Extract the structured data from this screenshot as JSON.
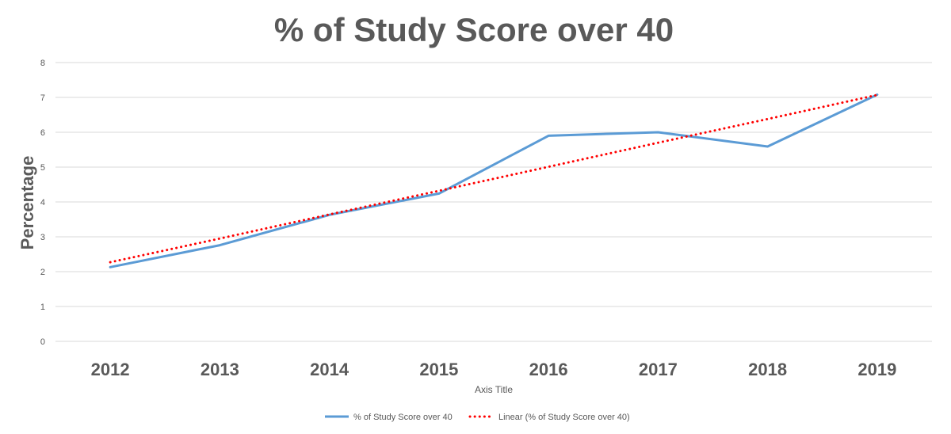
{
  "chart_data": {
    "type": "line",
    "title": "% of Study Score over 40",
    "xlabel": "Axis Title",
    "ylabel": "Percentage",
    "categories": [
      "2012",
      "2013",
      "2014",
      "2015",
      "2016",
      "2017",
      "2018",
      "2019"
    ],
    "ylim": [
      0,
      8
    ],
    "yticks": [
      0,
      1,
      2,
      3,
      4,
      5,
      6,
      7,
      8
    ],
    "grid": true,
    "legend_position": "bottom",
    "series": [
      {
        "name": "% of Study Score over 40",
        "values": [
          2.13,
          2.76,
          3.63,
          4.24,
          5.9,
          6.0,
          5.59,
          7.08
        ],
        "color": "#5b9bd5",
        "style": "solid"
      },
      {
        "name": "Linear (% of Study Score over 40)",
        "values": [
          2.27,
          2.95,
          3.64,
          4.32,
          5.01,
          5.7,
          6.38,
          7.07
        ],
        "color": "#ff0000",
        "style": "dotted"
      }
    ]
  }
}
